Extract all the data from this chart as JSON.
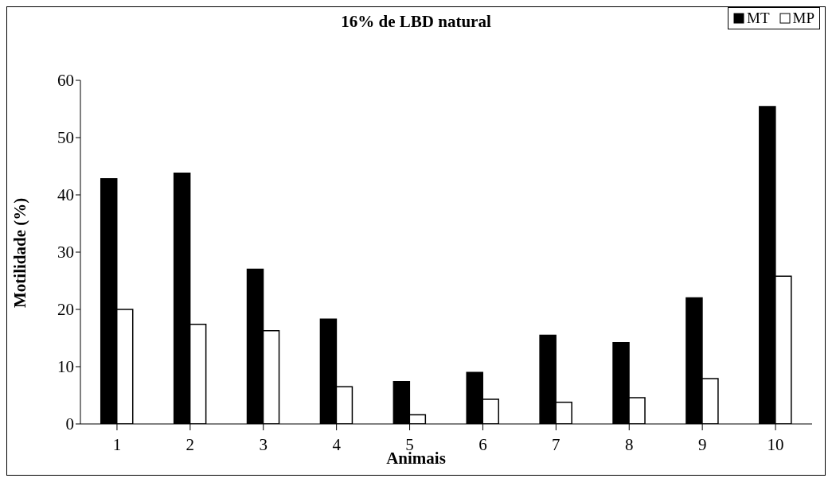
{
  "chart_data": {
    "type": "bar",
    "title": "16% de LBD natural",
    "xlabel": "Animais",
    "ylabel": "Motilidade (%)",
    "categories": [
      "1",
      "2",
      "3",
      "4",
      "5",
      "6",
      "7",
      "8",
      "9",
      "10"
    ],
    "series": [
      {
        "name": "MT",
        "color": "#000000",
        "values": [
          42.8,
          43.8,
          27,
          18.3,
          7.4,
          9,
          15.5,
          14.2,
          22,
          55.4
        ]
      },
      {
        "name": "MP",
        "color": "#ffffff",
        "values": [
          20,
          17.4,
          16.3,
          6.5,
          1.6,
          4.3,
          3.8,
          4.6,
          7.9,
          25.8
        ]
      }
    ],
    "ylim": [
      0,
      60
    ],
    "yticks": [
      0,
      10,
      20,
      30,
      40,
      50,
      60
    ],
    "grid": false,
    "legend": "top right"
  }
}
